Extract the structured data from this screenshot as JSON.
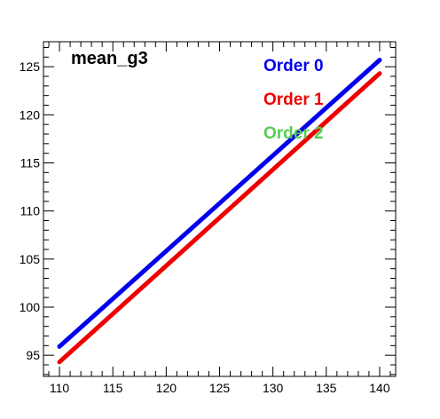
{
  "chart_data": {
    "type": "line",
    "title": "mean_g3",
    "xlim": [
      108.5,
      141.5
    ],
    "ylim": [
      92.8,
      127.6
    ],
    "x_ticks": [
      110,
      115,
      120,
      125,
      130,
      135,
      140
    ],
    "x_tick_labels": [
      "110",
      "115",
      "120",
      "125",
      "130",
      "135",
      "140"
    ],
    "y_ticks": [
      95,
      100,
      105,
      110,
      115,
      120,
      125
    ],
    "y_tick_labels": [
      "95",
      "100",
      "105",
      "110",
      "115",
      "120",
      "125"
    ],
    "grid": false,
    "legend_placement": "top-right",
    "series": [
      {
        "name": "Order 0",
        "color": "#0000ee",
        "x": [
          110,
          140
        ],
        "y": [
          95.9,
          125.7
        ]
      },
      {
        "name": "Order 1",
        "color": "#ee0000",
        "x": [
          110,
          140
        ],
        "y": [
          94.3,
          124.3
        ]
      },
      {
        "name": "Order 2",
        "color": "#55cc55",
        "x": [],
        "y": []
      }
    ]
  }
}
